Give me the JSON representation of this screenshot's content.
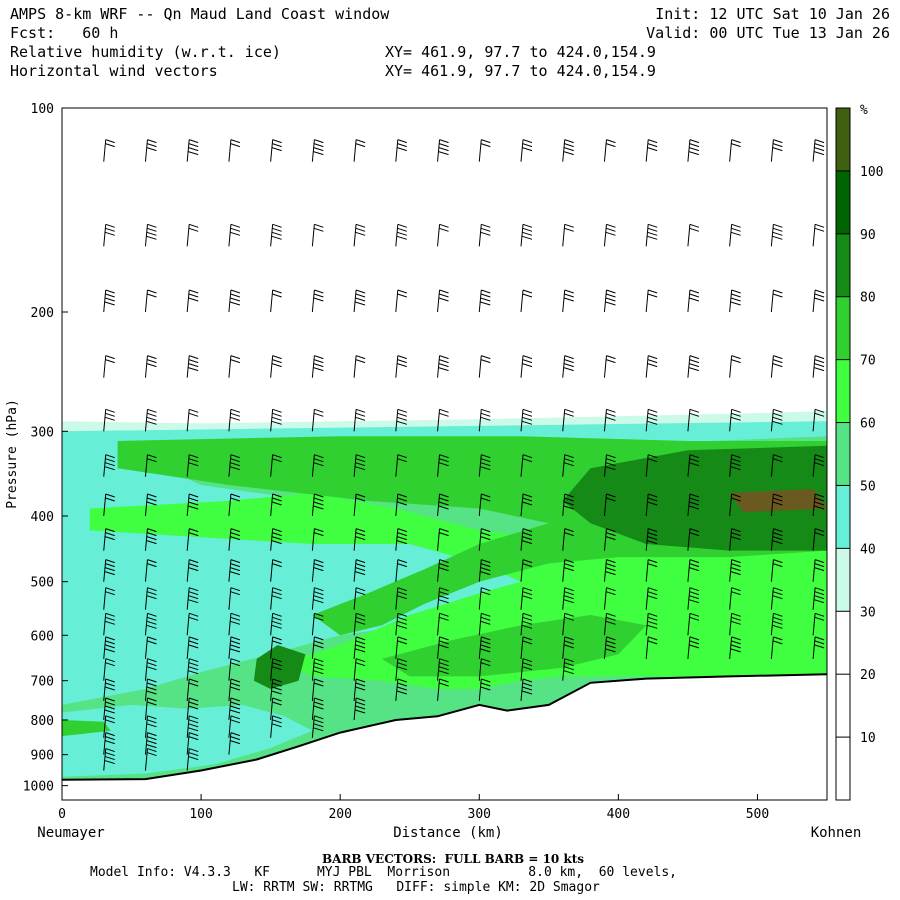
{
  "header": {
    "title": "AMPS 8-km WRF -- Qn Maud Land Coast window",
    "fcst": "Fcst:   60 h",
    "init": "Init: 12 UTC Sat 10 Jan 26",
    "valid": "Valid: 00 UTC Tue 13 Jan 26",
    "field1": "Relative humidity (w.r.t. ice)",
    "field2": "Horizontal wind vectors",
    "xy1": "XY= 461.9, 97.7 to 424.0,154.9",
    "xy2": "XY= 461.9, 97.7 to 424.0,154.9"
  },
  "footer": {
    "barb": "BARB VECTORS:  FULL BARB = 10 kts",
    "model_line1": "Model Info: V4.3.3   KF      MYJ PBL  Morrison          8.0 km,  60 levels,",
    "model_line2": "LW: RRTM SW: RRTMG   DIFF: simple KM: 2D Smagor"
  },
  "chart_data": {
    "type": "heatmap",
    "xlabel": "Distance (km)",
    "ylabel": "Pressure (hPa)",
    "x_ticks": [
      0,
      100,
      200,
      300,
      400,
      500
    ],
    "y_ticks": [
      100,
      200,
      300,
      400,
      500,
      600,
      700,
      800,
      900,
      1000
    ],
    "xlim": [
      0,
      550
    ],
    "ylim": [
      1050,
      100
    ],
    "x_start_label": "Neumayer",
    "x_end_label": "Kohnen",
    "colorbar": {
      "unit": "%",
      "levels": [
        10,
        20,
        30,
        40,
        50,
        60,
        70,
        80,
        90,
        100
      ],
      "colors": [
        "#ffffff",
        "#ffffff",
        "#ffffff",
        "#ccfae8",
        "#66eed6",
        "#55e385",
        "#40ff40",
        "#30d030",
        "#168a16",
        "#006400",
        "#3f6010"
      ]
    },
    "terrain": [
      [
        0,
        980
      ],
      [
        60,
        978
      ],
      [
        100,
        950
      ],
      [
        140,
        915
      ],
      [
        170,
        875
      ],
      [
        200,
        835
      ],
      [
        240,
        800
      ],
      [
        270,
        790
      ],
      [
        300,
        760
      ],
      [
        320,
        775
      ],
      [
        350,
        760
      ],
      [
        380,
        705
      ],
      [
        420,
        695
      ],
      [
        480,
        690
      ],
      [
        550,
        685
      ]
    ],
    "moist_top": [
      [
        0,
        290
      ],
      [
        100,
        292
      ],
      [
        200,
        290
      ],
      [
        300,
        288
      ],
      [
        400,
        285
      ],
      [
        500,
        282
      ],
      [
        550,
        280
      ]
    ],
    "rh_regions": [
      {
        "name": "RH 50-60",
        "points": [
          [
            0,
            320
          ],
          [
            60,
            330
          ],
          [
            100,
            360
          ],
          [
            180,
            380
          ],
          [
            260,
            400
          ],
          [
            300,
            430
          ],
          [
            350,
            460
          ],
          [
            380,
            500
          ],
          [
            350,
            540
          ],
          [
            300,
            560
          ],
          [
            250,
            580
          ],
          [
            200,
            600
          ],
          [
            150,
            640
          ],
          [
            100,
            680
          ],
          [
            60,
            720
          ],
          [
            0,
            760
          ]
        ]
      },
      {
        "name": "RH 60-70 lower",
        "points": [
          [
            0,
            780
          ],
          [
            50,
            760
          ],
          [
            90,
            770
          ],
          [
            130,
            760
          ],
          [
            160,
            790
          ],
          [
            180,
            830
          ],
          [
            150,
            880
          ],
          [
            110,
            930
          ],
          [
            60,
            960
          ],
          [
            0,
            970
          ]
        ]
      },
      {
        "name": "RH 70-80",
        "points": [
          [
            20,
            390
          ],
          [
            120,
            380
          ],
          [
            180,
            370
          ],
          [
            240,
            390
          ],
          [
            300,
            420
          ],
          [
            380,
            440
          ],
          [
            480,
            430
          ],
          [
            550,
            420
          ],
          [
            550,
            700
          ],
          [
            420,
            690
          ],
          [
            360,
            690
          ],
          [
            330,
            700
          ],
          [
            300,
            720
          ],
          [
            270,
            720
          ],
          [
            230,
            700
          ],
          [
            180,
            690
          ],
          [
            160,
            660
          ],
          [
            200,
            620
          ],
          [
            250,
            560
          ],
          [
            300,
            520
          ],
          [
            330,
            500
          ],
          [
            300,
            470
          ],
          [
            250,
            440
          ],
          [
            180,
            440
          ],
          [
            100,
            430
          ],
          [
            20,
            420
          ]
        ]
      },
      {
        "name": "RH 80-90 band",
        "points": [
          [
            40,
            310
          ],
          [
            200,
            305
          ],
          [
            330,
            305
          ],
          [
            450,
            310
          ],
          [
            550,
            310
          ],
          [
            550,
            450
          ],
          [
            480,
            460
          ],
          [
            400,
            460
          ],
          [
            350,
            470
          ],
          [
            300,
            500
          ],
          [
            260,
            540
          ],
          [
            230,
            580
          ],
          [
            200,
            600
          ],
          [
            180,
            560
          ],
          [
            220,
            520
          ],
          [
            260,
            480
          ],
          [
            300,
            440
          ],
          [
            350,
            410
          ],
          [
            300,
            390
          ],
          [
            220,
            380
          ],
          [
            120,
            360
          ],
          [
            40,
            340
          ]
        ]
      },
      {
        "name": "RH 80-90 lower",
        "points": [
          [
            230,
            650
          ],
          [
            280,
            610
          ],
          [
            330,
            580
          ],
          [
            380,
            560
          ],
          [
            420,
            580
          ],
          [
            400,
            640
          ],
          [
            360,
            670
          ],
          [
            300,
            690
          ],
          [
            250,
            690
          ]
        ]
      },
      {
        "name": "RH 90-100",
        "points": [
          [
            380,
            340
          ],
          [
            450,
            320
          ],
          [
            550,
            315
          ],
          [
            550,
            450
          ],
          [
            480,
            450
          ],
          [
            420,
            440
          ],
          [
            380,
            410
          ],
          [
            360,
            380
          ]
        ]
      },
      {
        "name": "RH >100",
        "points": [
          [
            480,
            370
          ],
          [
            540,
            365
          ],
          [
            550,
            390
          ],
          [
            490,
            395
          ]
        ]
      },
      {
        "name": "RH 80-90 cell",
        "points": [
          [
            140,
            650
          ],
          [
            155,
            620
          ],
          [
            175,
            640
          ],
          [
            170,
            700
          ],
          [
            150,
            720
          ],
          [
            138,
            700
          ]
        ]
      },
      {
        "name": "RH 80-90 left",
        "points": [
          [
            0,
            800
          ],
          [
            30,
            805
          ],
          [
            35,
            830
          ],
          [
            0,
            845
          ]
        ]
      }
    ],
    "wind_barbs": {
      "columns_km": [
        30,
        60,
        90,
        120,
        150,
        180,
        210,
        240,
        270,
        300,
        330,
        360,
        390,
        420,
        450,
        480,
        510,
        540
      ],
      "levels_hpa": [
        120,
        160,
        200,
        250,
        300,
        350,
        400,
        450,
        500,
        550,
        600,
        650,
        700,
        750,
        800,
        850,
        900,
        950
      ]
    }
  }
}
